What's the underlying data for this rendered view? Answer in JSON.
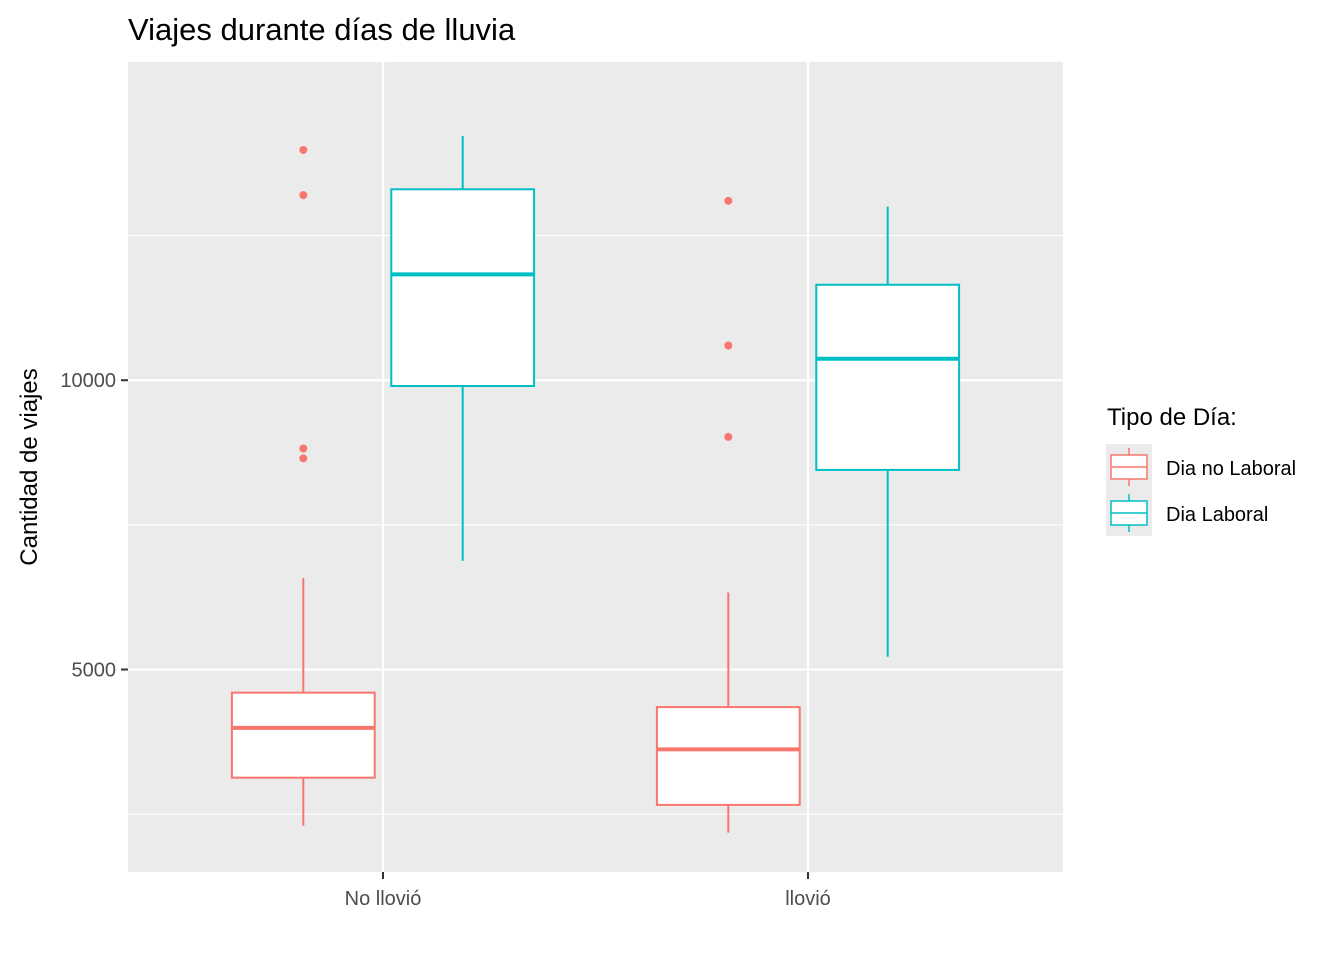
{
  "chart_data": {
    "type": "boxplot",
    "title": "Viajes durante días de lluvia",
    "xlabel": "",
    "ylabel": "Cantidad de viajes",
    "categories": [
      "No llovió",
      "llovió"
    ],
    "ylim": [
      1500,
      15500
    ],
    "yticks": [
      5000,
      10000
    ],
    "grid": true,
    "legend": {
      "title": "Tipo de Día:",
      "position": "right"
    },
    "series": [
      {
        "name": "Dia no Laboral",
        "color": "#f8766d",
        "boxes": [
          {
            "whisker_low": 2300,
            "q1": 3130,
            "median": 3990,
            "q3": 4600,
            "whisker_high": 6580,
            "outliers": [
              8650,
              8820,
              13200,
              13980
            ]
          },
          {
            "whisker_low": 2180,
            "q1": 2660,
            "median": 3620,
            "q3": 4350,
            "whisker_high": 6330,
            "outliers": [
              9020,
              10600,
              13100
            ]
          }
        ]
      },
      {
        "name": "Dia Laboral",
        "color": "#00bfc4",
        "boxes": [
          {
            "whisker_low": 6880,
            "q1": 9900,
            "median": 11830,
            "q3": 13300,
            "whisker_high": 14220,
            "outliers": []
          },
          {
            "whisker_low": 5220,
            "q1": 8450,
            "median": 10370,
            "q3": 11650,
            "whisker_high": 13000,
            "outliers": []
          }
        ]
      }
    ]
  }
}
